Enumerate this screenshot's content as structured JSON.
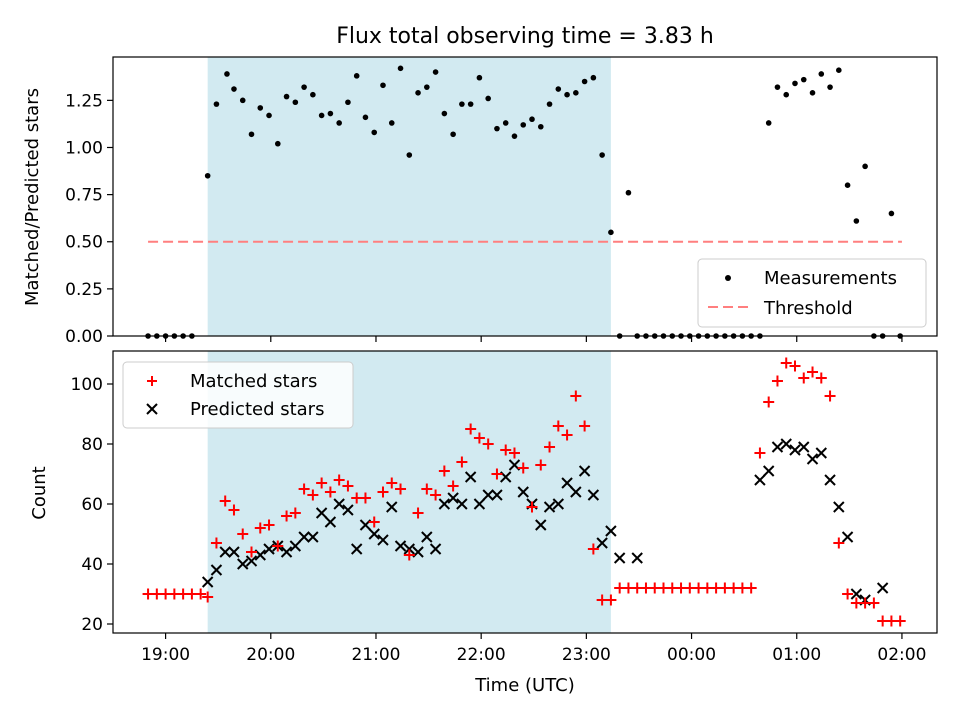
{
  "chart_data": [
    {
      "type": "scatter",
      "title": "Flux total observing time = 3.83 h",
      "ylabel": "Matched/Predicted stars",
      "xlabel": "",
      "xlim": [
        "18:30",
        "02:20"
      ],
      "ylim": [
        0,
        1.48
      ],
      "yticks": [
        "0.00",
        "0.25",
        "0.50",
        "0.75",
        "1.00",
        "1.25"
      ],
      "ytick_values": [
        0,
        0.25,
        0.5,
        0.75,
        1.0,
        1.25
      ],
      "shaded_span": {
        "start": "19:24",
        "end": "23:14",
        "color": "#add8e6"
      },
      "legend": {
        "placement": "lower right",
        "entries": [
          {
            "label": "Measurements",
            "marker": "dot"
          },
          {
            "label": "Threshold",
            "marker": "dashed-line"
          }
        ]
      },
      "threshold": {
        "name": "Threshold",
        "y": 0.5,
        "x_start": "18:50",
        "x_end": "02:00",
        "color": "#ff7f7f",
        "style": "dashed"
      },
      "series": [
        {
          "name": "Measurements",
          "color": "#000000",
          "marker": "dot",
          "x": [
            "18:50",
            "18:55",
            "19:00",
            "19:05",
            "19:10",
            "19:15",
            "19:24",
            "19:29",
            "19:35",
            "19:39",
            "19:44",
            "19:49",
            "19:54",
            "19:59",
            "20:04",
            "20:09",
            "20:14",
            "20:19",
            "20:24",
            "20:29",
            "20:34",
            "20:39",
            "20:44",
            "20:49",
            "20:54",
            "20:59",
            "21:04",
            "21:09",
            "21:14",
            "21:19",
            "21:24",
            "21:29",
            "21:34",
            "21:39",
            "21:44",
            "21:49",
            "21:54",
            "21:59",
            "22:04",
            "22:09",
            "22:14",
            "22:19",
            "22:24",
            "22:29",
            "22:34",
            "22:39",
            "22:44",
            "22:49",
            "22:54",
            "22:59",
            "23:04",
            "23:09",
            "23:14",
            "23:19",
            "23:24",
            "23:29",
            "23:34",
            "23:39",
            "23:44",
            "23:49",
            "23:54",
            "23:59",
            "00:04",
            "00:09",
            "00:14",
            "00:19",
            "00:24",
            "00:29",
            "00:34",
            "00:39",
            "00:44",
            "00:49",
            "00:54",
            "00:59",
            "01:04",
            "01:09",
            "01:14",
            "01:19",
            "01:24",
            "01:29",
            "01:34",
            "01:39",
            "01:44",
            "01:49",
            "01:54",
            "01:59"
          ],
          "y": [
            0,
            0,
            0,
            0,
            0,
            0,
            0.85,
            1.23,
            1.39,
            1.31,
            1.25,
            1.07,
            1.21,
            1.17,
            1.02,
            1.27,
            1.24,
            1.32,
            1.28,
            1.17,
            1.18,
            1.13,
            1.24,
            1.38,
            1.16,
            1.08,
            1.33,
            1.13,
            1.42,
            0.96,
            1.29,
            1.32,
            1.4,
            1.18,
            1.07,
            1.23,
            1.23,
            1.37,
            1.26,
            1.1,
            1.13,
            1.06,
            1.12,
            1.15,
            1.11,
            1.23,
            1.31,
            1.28,
            1.29,
            1.35,
            1.37,
            0.96,
            0.55,
            0,
            0.76,
            0,
            0,
            0,
            0,
            0,
            0,
            0,
            0,
            0,
            0,
            0,
            0,
            0,
            0,
            0,
            1.13,
            1.32,
            1.28,
            1.34,
            1.36,
            1.29,
            1.39,
            1.32,
            1.41,
            0.8,
            0.61,
            0.9,
            0,
            0,
            0.65,
            0
          ]
        }
      ]
    },
    {
      "type": "scatter",
      "title": "",
      "ylabel": "Count",
      "xlabel": "Time (UTC)",
      "xlim": [
        "18:30",
        "02:20"
      ],
      "ylim": [
        17,
        111
      ],
      "xticks": [
        "19:00",
        "20:00",
        "21:00",
        "22:00",
        "23:00",
        "00:00",
        "01:00",
        "02:00"
      ],
      "yticks": [
        "20",
        "40",
        "60",
        "80",
        "100"
      ],
      "ytick_values": [
        20,
        40,
        60,
        80,
        100
      ],
      "shaded_span": {
        "start": "19:24",
        "end": "23:14",
        "color": "#add8e6"
      },
      "legend": {
        "placement": "upper left",
        "entries": [
          {
            "label": "Matched stars",
            "marker": "plus"
          },
          {
            "label": "Predicted stars",
            "marker": "x"
          }
        ]
      },
      "series": [
        {
          "name": "Matched stars",
          "color": "#ff0000",
          "marker": "plus",
          "x": [
            "18:50",
            "18:55",
            "19:00",
            "19:05",
            "19:10",
            "19:15",
            "19:20",
            "19:24",
            "19:29",
            "19:34",
            "19:39",
            "19:44",
            "19:49",
            "19:54",
            "19:59",
            "20:04",
            "20:09",
            "20:14",
            "20:19",
            "20:24",
            "20:29",
            "20:34",
            "20:39",
            "20:44",
            "20:49",
            "20:54",
            "20:59",
            "21:04",
            "21:09",
            "21:14",
            "21:19",
            "21:24",
            "21:29",
            "21:34",
            "21:39",
            "21:44",
            "21:49",
            "21:54",
            "21:59",
            "22:04",
            "22:09",
            "22:14",
            "22:19",
            "22:24",
            "22:29",
            "22:34",
            "22:39",
            "22:44",
            "22:49",
            "22:54",
            "22:59",
            "23:04",
            "23:09",
            "23:14",
            "23:19",
            "23:24",
            "23:29",
            "23:34",
            "23:39",
            "23:44",
            "23:49",
            "23:54",
            "23:59",
            "00:04",
            "00:09",
            "00:14",
            "00:19",
            "00:24",
            "00:29",
            "00:34",
            "00:39",
            "00:44",
            "00:49",
            "00:54",
            "00:59",
            "01:04",
            "01:09",
            "01:14",
            "01:19",
            "01:24",
            "01:29",
            "01:34",
            "01:39",
            "01:44",
            "01:49",
            "01:54",
            "01:59"
          ],
          "y": [
            30,
            30,
            30,
            30,
            30,
            30,
            30,
            29,
            47,
            61,
            58,
            50,
            44,
            52,
            53,
            46,
            56,
            57,
            65,
            63,
            67,
            64,
            68,
            66,
            62,
            62,
            54,
            64,
            67,
            65,
            43,
            57,
            65,
            63,
            71,
            66,
            74,
            85,
            82,
            80,
            70,
            78,
            77,
            72,
            59,
            73,
            79,
            86,
            83,
            96,
            86,
            45,
            28,
            28,
            32,
            32,
            32,
            32,
            32,
            32,
            32,
            32,
            32,
            32,
            32,
            32,
            32,
            32,
            32,
            32,
            77,
            94,
            101,
            107,
            106,
            102,
            104,
            102,
            96,
            47,
            30,
            27,
            27,
            27,
            21,
            21,
            21
          ]
        },
        {
          "name": "Predicted stars",
          "color": "#000000",
          "marker": "x",
          "x": [
            "19:24",
            "19:29",
            "19:34",
            "19:39",
            "19:44",
            "19:49",
            "19:54",
            "19:59",
            "20:04",
            "20:09",
            "20:14",
            "20:19",
            "20:24",
            "20:29",
            "20:34",
            "20:39",
            "20:44",
            "20:49",
            "20:54",
            "20:59",
            "21:04",
            "21:09",
            "21:14",
            "21:19",
            "21:24",
            "21:29",
            "21:34",
            "21:39",
            "21:44",
            "21:49",
            "21:54",
            "21:59",
            "22:04",
            "22:09",
            "22:14",
            "22:19",
            "22:24",
            "22:29",
            "22:34",
            "22:39",
            "22:44",
            "22:49",
            "22:54",
            "22:59",
            "23:04",
            "23:09",
            "23:14",
            "23:19",
            "23:29",
            "00:39",
            "00:44",
            "00:49",
            "00:54",
            "00:59",
            "01:04",
            "01:09",
            "01:14",
            "01:19",
            "01:24",
            "01:29",
            "01:34",
            "01:39",
            "01:49"
          ],
          "y": [
            34,
            38,
            44,
            44,
            40,
            41,
            43,
            45,
            46,
            44,
            46,
            49,
            49,
            57,
            54,
            60,
            58,
            45,
            53,
            50,
            48,
            59,
            46,
            45,
            44,
            49,
            45,
            60,
            62,
            60,
            69,
            60,
            63,
            63,
            69,
            73,
            64,
            60,
            53,
            59,
            60,
            67,
            64,
            71,
            63,
            47,
            51,
            42,
            42,
            68,
            71,
            79,
            80,
            78,
            79,
            75,
            77,
            68,
            59,
            49,
            30,
            28,
            32
          ]
        }
      ]
    }
  ]
}
